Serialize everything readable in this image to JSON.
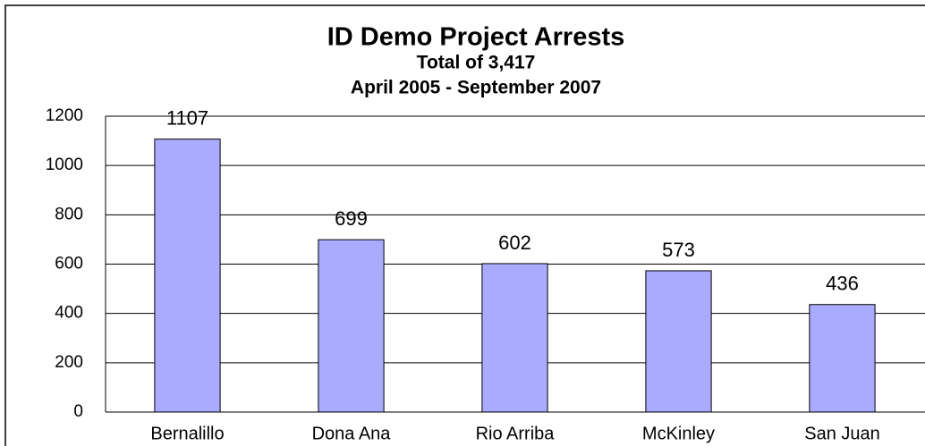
{
  "chart_data": {
    "type": "bar",
    "title": "ID Demo Project Arrests",
    "subtitle": [
      "Total of 3,417",
      "April 2005 - September 2007"
    ],
    "categories": [
      "Bernalillo",
      "Dona Ana",
      "Rio Arriba",
      "McKinley",
      "San Juan"
    ],
    "values": [
      1107,
      699,
      602,
      573,
      436
    ],
    "color": "#aaaaff",
    "ylim": [
      0,
      1200
    ],
    "yticks": [
      0,
      200,
      400,
      600,
      800,
      1000,
      1200
    ],
    "grid": true
  }
}
